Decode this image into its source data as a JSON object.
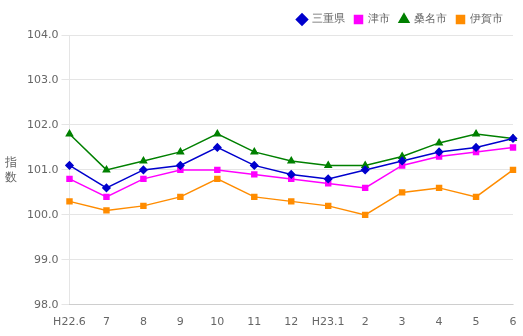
{
  "chart_data": {
    "type": "line",
    "ylabel": "指数",
    "categories": [
      "H22.6",
      "7",
      "8",
      "9",
      "10",
      "11",
      "12",
      "H23.1",
      "2",
      "3",
      "4",
      "5",
      "6"
    ],
    "series": [
      {
        "name": "三重県",
        "color": "#0000CD",
        "marker": "diamond",
        "values": [
          101.1,
          100.6,
          101.0,
          101.1,
          101.5,
          101.1,
          100.9,
          100.8,
          101.0,
          101.2,
          101.4,
          101.5,
          101.7
        ]
      },
      {
        "name": "津市",
        "color": "#FF00FF",
        "marker": "square",
        "values": [
          100.8,
          100.4,
          100.8,
          101.0,
          101.0,
          100.9,
          100.8,
          100.7,
          100.6,
          101.1,
          101.3,
          101.4,
          101.5
        ]
      },
      {
        "name": "桑名市",
        "color": "#008000",
        "marker": "triangle",
        "values": [
          101.8,
          101.0,
          101.2,
          101.4,
          101.8,
          101.4,
          101.2,
          101.1,
          101.1,
          101.3,
          101.6,
          101.8,
          101.7
        ]
      },
      {
        "name": "伊賀市",
        "color": "#FF8C00",
        "marker": "square",
        "values": [
          100.3,
          100.1,
          100.2,
          100.4,
          100.8,
          100.4,
          100.3,
          100.2,
          100.0,
          100.5,
          100.6,
          100.4,
          101.0
        ]
      }
    ],
    "ylim": [
      98.0,
      104.0
    ],
    "yticks": [
      {
        "value": 98,
        "label": "98.0"
      },
      {
        "value": 99,
        "label": "99.0"
      },
      {
        "value": 100,
        "label": "100.0"
      },
      {
        "value": 101,
        "label": "101.0"
      },
      {
        "value": 102,
        "label": "102.0"
      },
      {
        "value": 103,
        "label": "103.0"
      },
      {
        "value": 104,
        "label": "104.0"
      }
    ],
    "grid": "y",
    "legend": "upper right"
  }
}
